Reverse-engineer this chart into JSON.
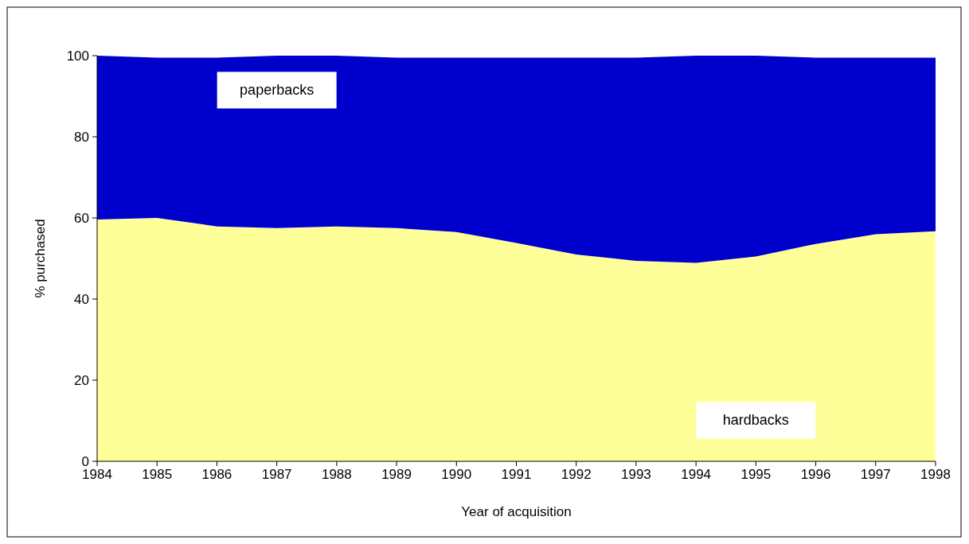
{
  "chart_data": {
    "type": "area",
    "stacked": true,
    "xlabel": "Year of acquisition",
    "ylabel": "% purchased",
    "categories": [
      "1984",
      "1985",
      "1986",
      "1987",
      "1988",
      "1989",
      "1990",
      "1991",
      "1992",
      "1993",
      "1994",
      "1995",
      "1996",
      "1997",
      "1998"
    ],
    "series": [
      {
        "name": "hardbacks",
        "color": "#ffff99",
        "values": [
          59.6,
          60.0,
          57.9,
          57.5,
          57.9,
          57.5,
          56.5,
          53.8,
          51.0,
          49.4,
          48.9,
          50.5,
          53.6,
          56.0,
          56.7
        ]
      },
      {
        "name": "paperbacks",
        "color": "#0000cc",
        "values": [
          40.4,
          39.5,
          41.6,
          42.5,
          42.1,
          42.0,
          43.0,
          45.7,
          48.5,
          50.1,
          51.1,
          49.5,
          45.9,
          43.5,
          42.8
        ]
      }
    ],
    "ylim": [
      0,
      100
    ],
    "yticks": [
      0,
      20,
      40,
      60,
      80,
      100
    ],
    "grid": false,
    "legend": false
  }
}
